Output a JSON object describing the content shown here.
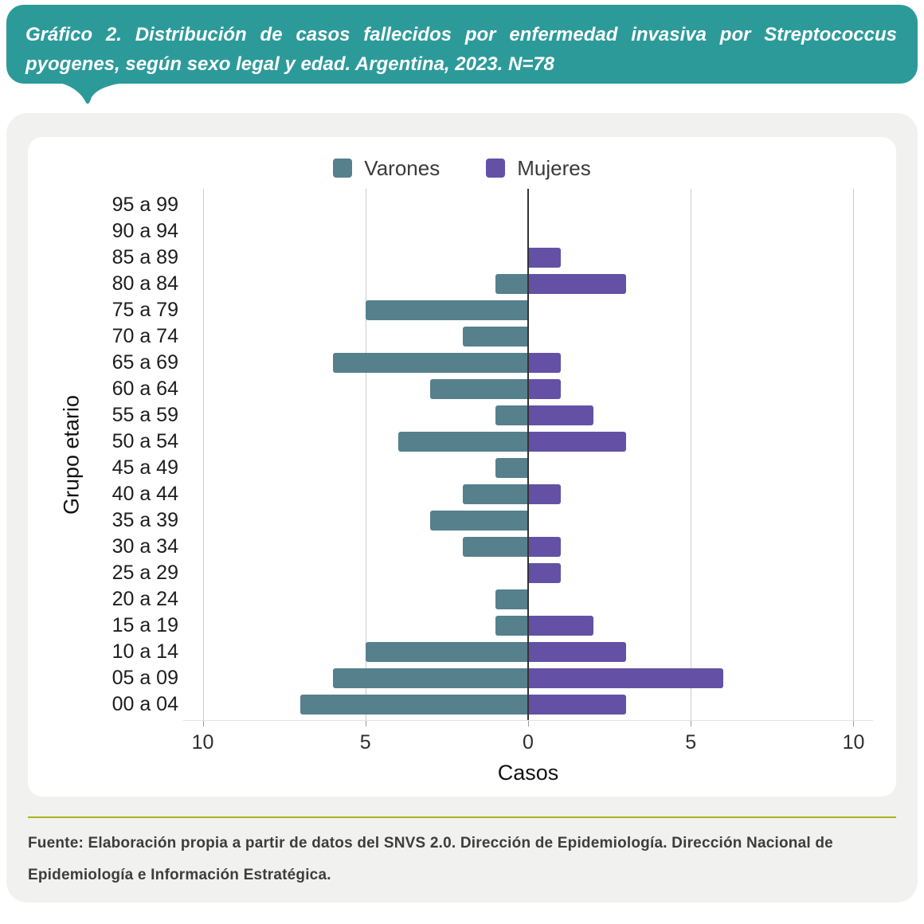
{
  "header": {
    "title": "Gráfico 2. Distribución de casos fallecidos por enfermedad invasiva por Streptococcus pyogenes, según sexo legal y edad. Argentina, 2023. N=78"
  },
  "colors": {
    "banner": "#2d9a9a",
    "divider": "#a9b41f",
    "varones": "#55808c",
    "mujeres": "#6451a5",
    "gridline": "#cccccc",
    "zero_axis": "#333333"
  },
  "chart_data": {
    "type": "bar",
    "subtype": "population-pyramid",
    "title": "",
    "xlabel": "Casos",
    "ylabel": "Grupo etario",
    "n_total": 78,
    "categories": [
      "95 a 99",
      "90 a 94",
      "85 a 89",
      "80 a 84",
      "75 a 79",
      "70 a 74",
      "65 a 69",
      "60 a 64",
      "55 a 59",
      "50 a 54",
      "45 a 49",
      "40 a 44",
      "35 a 39",
      "30 a 34",
      "25 a 29",
      "20 a 24",
      "15 a 19",
      "10 a 14",
      "05 a 09",
      "00 a 04"
    ],
    "series": [
      {
        "name": "Varones",
        "side": "left",
        "color": "#55808c",
        "values": [
          0,
          0,
          0,
          1,
          5,
          2,
          6,
          3,
          1,
          4,
          1,
          2,
          3,
          2,
          0,
          1,
          1,
          5,
          6,
          7
        ]
      },
      {
        "name": "Mujeres",
        "side": "right",
        "color": "#6451a5",
        "values": [
          0,
          0,
          1,
          3,
          0,
          0,
          1,
          1,
          2,
          3,
          0,
          1,
          0,
          1,
          1,
          0,
          2,
          3,
          6,
          3
        ]
      }
    ],
    "x_tick_labels": [
      "10",
      "5",
      "0",
      "5",
      "10"
    ],
    "x_tick_values": [
      -10,
      -5,
      0,
      5,
      10
    ],
    "x_half_range": 10.6,
    "grid": true,
    "legend_position": "top"
  },
  "footer": {
    "text": "Fuente: Elaboración propia a partir de datos del SNVS 2.0. Dirección de Epidemiología. Dirección Nacional de Epidemiología e Información Estratégica."
  }
}
